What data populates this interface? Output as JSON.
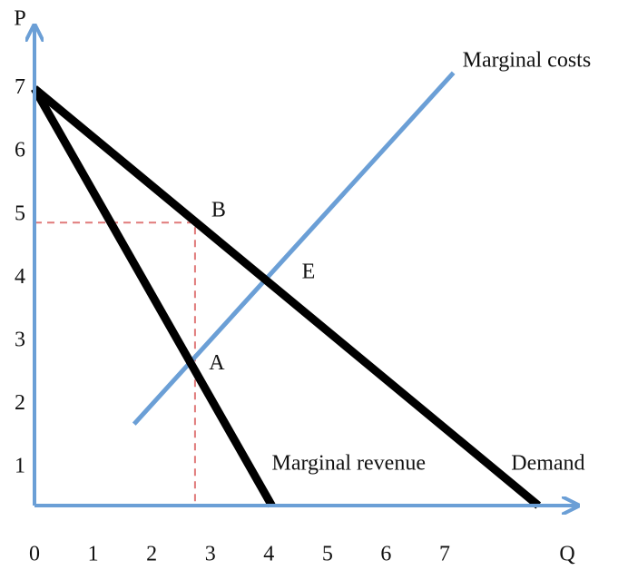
{
  "chart_data": {
    "type": "line",
    "x_label": "Q",
    "y_label": "P",
    "xlim": [
      0,
      9.2
    ],
    "ylim": [
      0.4,
      7.9
    ],
    "xticks": [
      0,
      1,
      2,
      3,
      4,
      5,
      6,
      7
    ],
    "yticks": [
      1,
      2,
      3,
      4,
      5,
      6,
      7
    ],
    "axis_color": "#6b9fd6",
    "series": [
      {
        "name": "Marginal costs",
        "color": "#6b9fd6",
        "x": [
          1.7,
          7.15
        ],
        "values": [
          1.69,
          7.25
        ]
      },
      {
        "name": "Demand",
        "color": "#000000",
        "x": [
          0,
          8.6
        ],
        "values": [
          7,
          0.4
        ]
      },
      {
        "name": "Marginal revenue",
        "color": "#000000",
        "x": [
          0,
          4.05
        ],
        "values": [
          7,
          0.4
        ]
      }
    ],
    "guides": [
      {
        "color": "#e07a7a",
        "x": [
          0,
          2.74,
          2.74
        ],
        "values": [
          4.88,
          4.88,
          0.4
        ]
      }
    ],
    "points": [
      {
        "label": "B",
        "x": 2.74,
        "y": 4.88
      },
      {
        "label": "E",
        "x": 3.98,
        "y": 4.02
      },
      {
        "label": "A",
        "x": 2.74,
        "y": 2.66
      }
    ]
  }
}
